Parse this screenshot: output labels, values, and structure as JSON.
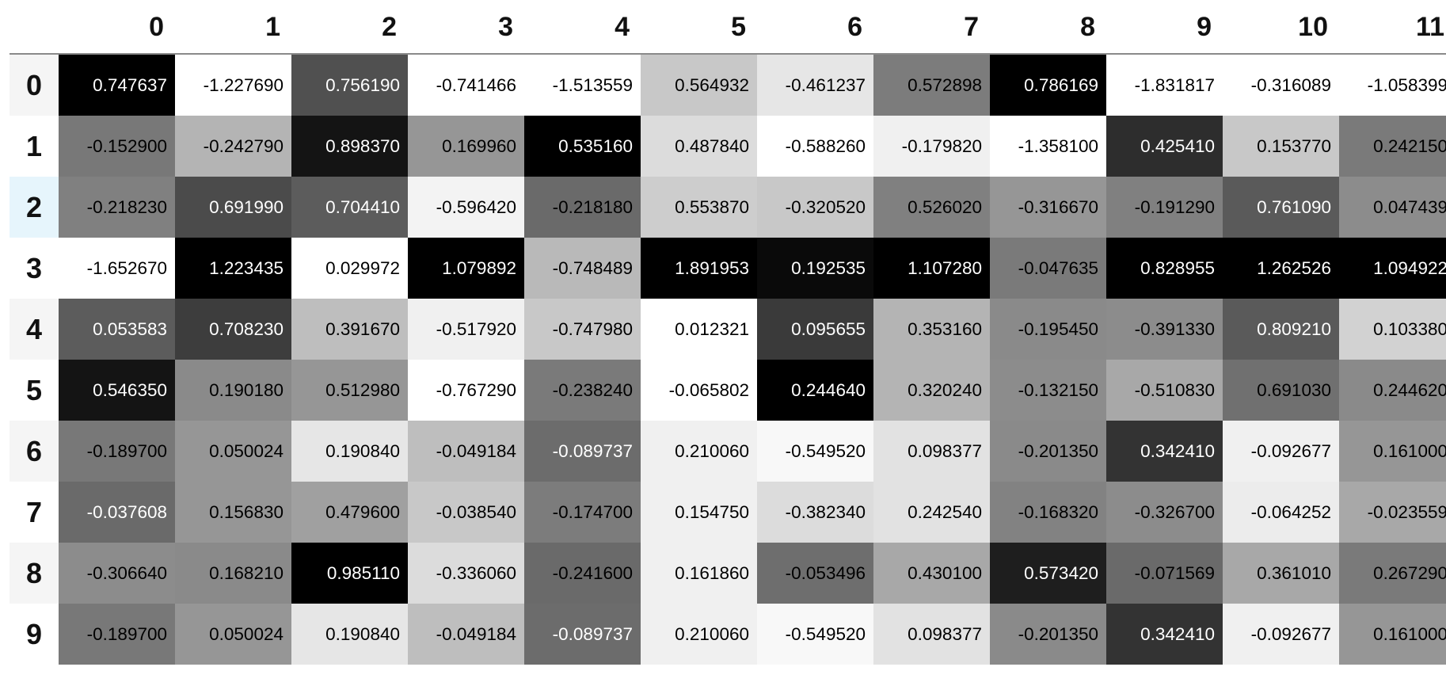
{
  "columns": [
    "0",
    "1",
    "2",
    "3",
    "4",
    "5",
    "6",
    "7",
    "8",
    "9",
    "10",
    "11"
  ],
  "selected_row": 2,
  "rows": [
    {
      "label": "0",
      "cells": [
        {
          "v": "0.747637",
          "bg": "#000000",
          "fg": "#ffffff"
        },
        {
          "v": "-1.227690",
          "bg": "#ffffff",
          "fg": "#000000"
        },
        {
          "v": "0.756190",
          "bg": "#505050",
          "fg": "#ffffff"
        },
        {
          "v": "-0.741466",
          "bg": "#ffffff",
          "fg": "#000000"
        },
        {
          "v": "-1.513559",
          "bg": "#ffffff",
          "fg": "#000000"
        },
        {
          "v": "0.564932",
          "bg": "#c8c8c8",
          "fg": "#000000"
        },
        {
          "v": "-0.461237",
          "bg": "#e6e6e6",
          "fg": "#000000"
        },
        {
          "v": "0.572898",
          "bg": "#7c7c7c",
          "fg": "#000000"
        },
        {
          "v": "0.786169",
          "bg": "#000000",
          "fg": "#ffffff"
        },
        {
          "v": "-1.831817",
          "bg": "#ffffff",
          "fg": "#000000"
        },
        {
          "v": "-0.316089",
          "bg": "#ffffff",
          "fg": "#000000"
        },
        {
          "v": "-1.058399",
          "bg": "#ffffff",
          "fg": "#000000"
        },
        {
          "v": "",
          "bg": "#ffffff",
          "fg": "#000000"
        }
      ]
    },
    {
      "label": "1",
      "cells": [
        {
          "v": "-0.152900",
          "bg": "#787878",
          "fg": "#000000"
        },
        {
          "v": "-0.242790",
          "bg": "#b4b4b4",
          "fg": "#000000"
        },
        {
          "v": "0.898370",
          "bg": "#141414",
          "fg": "#ffffff"
        },
        {
          "v": "0.169960",
          "bg": "#969696",
          "fg": "#000000"
        },
        {
          "v": "0.535160",
          "bg": "#000000",
          "fg": "#ffffff"
        },
        {
          "v": "0.487840",
          "bg": "#dcdcdc",
          "fg": "#000000"
        },
        {
          "v": "-0.588260",
          "bg": "#ffffff",
          "fg": "#000000"
        },
        {
          "v": "-0.179820",
          "bg": "#f0f0f0",
          "fg": "#000000"
        },
        {
          "v": "-1.358100",
          "bg": "#ffffff",
          "fg": "#000000"
        },
        {
          "v": "0.425410",
          "bg": "#2d2d2d",
          "fg": "#ffffff"
        },
        {
          "v": "0.153770",
          "bg": "#c8c8c8",
          "fg": "#000000"
        },
        {
          "v": "0.242150",
          "bg": "#7a7a7a",
          "fg": "#000000"
        },
        {
          "v": "",
          "bg": "#3c3c3c",
          "fg": "#ffffff"
        }
      ]
    },
    {
      "label": "2",
      "cells": [
        {
          "v": "-0.218230",
          "bg": "#808080",
          "fg": "#000000"
        },
        {
          "v": "0.691990",
          "bg": "#4b4b4b",
          "fg": "#ffffff"
        },
        {
          "v": "0.704410",
          "bg": "#5c5c5c",
          "fg": "#ffffff"
        },
        {
          "v": "-0.596420",
          "bg": "#f3f3f3",
          "fg": "#000000"
        },
        {
          "v": "-0.218180",
          "bg": "#6a6a6a",
          "fg": "#000000"
        },
        {
          "v": "0.553870",
          "bg": "#cdcdcd",
          "fg": "#000000"
        },
        {
          "v": "-0.320520",
          "bg": "#c8c8c8",
          "fg": "#000000"
        },
        {
          "v": "0.526020",
          "bg": "#808080",
          "fg": "#000000"
        },
        {
          "v": "-0.316670",
          "bg": "#969696",
          "fg": "#000000"
        },
        {
          "v": "-0.191290",
          "bg": "#808080",
          "fg": "#000000"
        },
        {
          "v": "0.761090",
          "bg": "#5a5a5a",
          "fg": "#ffffff"
        },
        {
          "v": "0.047439",
          "bg": "#8c8c8c",
          "fg": "#000000"
        },
        {
          "v": "",
          "bg": "#7a7a7a",
          "fg": "#000000"
        }
      ]
    },
    {
      "label": "3",
      "cells": [
        {
          "v": "-1.652670",
          "bg": "#ffffff",
          "fg": "#000000"
        },
        {
          "v": "1.223435",
          "bg": "#000000",
          "fg": "#ffffff"
        },
        {
          "v": "0.029972",
          "bg": "#ffffff",
          "fg": "#000000"
        },
        {
          "v": "1.079892",
          "bg": "#000000",
          "fg": "#ffffff"
        },
        {
          "v": "-0.748489",
          "bg": "#b9b9b9",
          "fg": "#000000"
        },
        {
          "v": "1.891953",
          "bg": "#000000",
          "fg": "#ffffff"
        },
        {
          "v": "0.192535",
          "bg": "#0a0a0a",
          "fg": "#ffffff"
        },
        {
          "v": "1.107280",
          "bg": "#000000",
          "fg": "#ffffff"
        },
        {
          "v": "-0.047635",
          "bg": "#7a7a7a",
          "fg": "#000000"
        },
        {
          "v": "0.828955",
          "bg": "#000000",
          "fg": "#ffffff"
        },
        {
          "v": "1.262526",
          "bg": "#000000",
          "fg": "#ffffff"
        },
        {
          "v": "1.094922",
          "bg": "#000000",
          "fg": "#ffffff"
        },
        {
          "v": "",
          "bg": "#000000",
          "fg": "#ffffff"
        }
      ]
    },
    {
      "label": "4",
      "cells": [
        {
          "v": "0.053583",
          "bg": "#5c5c5c",
          "fg": "#ffffff"
        },
        {
          "v": "0.708230",
          "bg": "#3d3d3d",
          "fg": "#ffffff"
        },
        {
          "v": "0.391670",
          "bg": "#bebebe",
          "fg": "#000000"
        },
        {
          "v": "-0.517920",
          "bg": "#f0f0f0",
          "fg": "#000000"
        },
        {
          "v": "-0.747980",
          "bg": "#c8c8c8",
          "fg": "#000000"
        },
        {
          "v": "0.012321",
          "bg": "#ffffff",
          "fg": "#000000"
        },
        {
          "v": "0.095655",
          "bg": "#3a3a3a",
          "fg": "#ffffff"
        },
        {
          "v": "0.353160",
          "bg": "#b4b4b4",
          "fg": "#000000"
        },
        {
          "v": "-0.195450",
          "bg": "#8a8a8a",
          "fg": "#000000"
        },
        {
          "v": "-0.391330",
          "bg": "#8c8c8c",
          "fg": "#000000"
        },
        {
          "v": "0.809210",
          "bg": "#5a5a5a",
          "fg": "#ffffff"
        },
        {
          "v": "0.103380",
          "bg": "#d2d2d2",
          "fg": "#000000"
        },
        {
          "v": "",
          "bg": "#3c3c3c",
          "fg": "#ffffff"
        }
      ]
    },
    {
      "label": "5",
      "cells": [
        {
          "v": "0.546350",
          "bg": "#141414",
          "fg": "#ffffff"
        },
        {
          "v": "0.190180",
          "bg": "#8a8a8a",
          "fg": "#000000"
        },
        {
          "v": "0.512980",
          "bg": "#969696",
          "fg": "#000000"
        },
        {
          "v": "-0.767290",
          "bg": "#ffffff",
          "fg": "#000000"
        },
        {
          "v": "-0.238240",
          "bg": "#7a7a7a",
          "fg": "#000000"
        },
        {
          "v": "-0.065802",
          "bg": "#ffffff",
          "fg": "#000000"
        },
        {
          "v": "0.244640",
          "bg": "#000000",
          "fg": "#ffffff"
        },
        {
          "v": "0.320240",
          "bg": "#b4b4b4",
          "fg": "#000000"
        },
        {
          "v": "-0.132150",
          "bg": "#8c8c8c",
          "fg": "#000000"
        },
        {
          "v": "-0.510830",
          "bg": "#a8a8a8",
          "fg": "#000000"
        },
        {
          "v": "0.691030",
          "bg": "#707070",
          "fg": "#000000"
        },
        {
          "v": "0.244620",
          "bg": "#8a8a8a",
          "fg": "#000000"
        },
        {
          "v": "",
          "bg": "#3c3c3c",
          "fg": "#ffffff"
        }
      ]
    },
    {
      "label": "6",
      "cells": [
        {
          "v": "-0.189700",
          "bg": "#787878",
          "fg": "#000000"
        },
        {
          "v": "0.050024",
          "bg": "#969696",
          "fg": "#000000"
        },
        {
          "v": "0.190840",
          "bg": "#e6e6e6",
          "fg": "#000000"
        },
        {
          "v": "-0.049184",
          "bg": "#bebebe",
          "fg": "#000000"
        },
        {
          "v": "-0.089737",
          "bg": "#6c6c6c",
          "fg": "#ffffff"
        },
        {
          "v": "0.210060",
          "bg": "#f0f0f0",
          "fg": "#000000"
        },
        {
          "v": "-0.549520",
          "bg": "#f8f8f8",
          "fg": "#000000"
        },
        {
          "v": "0.098377",
          "bg": "#e2e2e2",
          "fg": "#000000"
        },
        {
          "v": "-0.201350",
          "bg": "#8a8a8a",
          "fg": "#000000"
        },
        {
          "v": "0.342410",
          "bg": "#333333",
          "fg": "#ffffff"
        },
        {
          "v": "-0.092677",
          "bg": "#f0f0f0",
          "fg": "#000000"
        },
        {
          "v": "0.161000",
          "bg": "#969696",
          "fg": "#000000"
        },
        {
          "v": "",
          "bg": "#7a7a7a",
          "fg": "#000000"
        }
      ]
    },
    {
      "label": "7",
      "cells": [
        {
          "v": "-0.037608",
          "bg": "#6a6a6a",
          "fg": "#ffffff"
        },
        {
          "v": "0.156830",
          "bg": "#969696",
          "fg": "#000000"
        },
        {
          "v": "0.479600",
          "bg": "#a0a0a0",
          "fg": "#000000"
        },
        {
          "v": "-0.038540",
          "bg": "#c8c8c8",
          "fg": "#000000"
        },
        {
          "v": "-0.174700",
          "bg": "#7c7c7c",
          "fg": "#000000"
        },
        {
          "v": "0.154750",
          "bg": "#f0f0f0",
          "fg": "#000000"
        },
        {
          "v": "-0.382340",
          "bg": "#dcdcdc",
          "fg": "#000000"
        },
        {
          "v": "0.242540",
          "bg": "#e2e2e2",
          "fg": "#000000"
        },
        {
          "v": "-0.168320",
          "bg": "#828282",
          "fg": "#000000"
        },
        {
          "v": "-0.326700",
          "bg": "#8c8c8c",
          "fg": "#000000"
        },
        {
          "v": "-0.064252",
          "bg": "#ececec",
          "fg": "#000000"
        },
        {
          "v": "-0.023559",
          "bg": "#a8a8a8",
          "fg": "#000000"
        },
        {
          "v": "",
          "bg": "#7a7a7a",
          "fg": "#000000"
        }
      ]
    },
    {
      "label": "8",
      "cells": [
        {
          "v": "-0.306640",
          "bg": "#8c8c8c",
          "fg": "#000000"
        },
        {
          "v": "0.168210",
          "bg": "#8a8a8a",
          "fg": "#000000"
        },
        {
          "v": "0.985110",
          "bg": "#000000",
          "fg": "#ffffff"
        },
        {
          "v": "-0.336060",
          "bg": "#dcdcdc",
          "fg": "#000000"
        },
        {
          "v": "-0.241600",
          "bg": "#6a6a6a",
          "fg": "#000000"
        },
        {
          "v": "0.161860",
          "bg": "#f0f0f0",
          "fg": "#000000"
        },
        {
          "v": "-0.053496",
          "bg": "#6e6e6e",
          "fg": "#000000"
        },
        {
          "v": "0.430100",
          "bg": "#a8a8a8",
          "fg": "#000000"
        },
        {
          "v": "0.573420",
          "bg": "#1e1e1e",
          "fg": "#ffffff"
        },
        {
          "v": "-0.071569",
          "bg": "#6a6a6a",
          "fg": "#000000"
        },
        {
          "v": "0.361010",
          "bg": "#a8a8a8",
          "fg": "#000000"
        },
        {
          "v": "0.267290",
          "bg": "#7a7a7a",
          "fg": "#000000"
        },
        {
          "v": "",
          "bg": "#7a7a7a",
          "fg": "#000000"
        }
      ]
    },
    {
      "label": "9",
      "cells": [
        {
          "v": "-0.189700",
          "bg": "#787878",
          "fg": "#000000"
        },
        {
          "v": "0.050024",
          "bg": "#969696",
          "fg": "#000000"
        },
        {
          "v": "0.190840",
          "bg": "#e6e6e6",
          "fg": "#000000"
        },
        {
          "v": "-0.049184",
          "bg": "#bebebe",
          "fg": "#000000"
        },
        {
          "v": "-0.089737",
          "bg": "#6c6c6c",
          "fg": "#ffffff"
        },
        {
          "v": "0.210060",
          "bg": "#f0f0f0",
          "fg": "#000000"
        },
        {
          "v": "-0.549520",
          "bg": "#f8f8f8",
          "fg": "#000000"
        },
        {
          "v": "0.098377",
          "bg": "#e2e2e2",
          "fg": "#000000"
        },
        {
          "v": "-0.201350",
          "bg": "#8a8a8a",
          "fg": "#000000"
        },
        {
          "v": "0.342410",
          "bg": "#333333",
          "fg": "#ffffff"
        },
        {
          "v": "-0.092677",
          "bg": "#f0f0f0",
          "fg": "#000000"
        },
        {
          "v": "0.161000",
          "bg": "#969696",
          "fg": "#000000"
        },
        {
          "v": "",
          "bg": "#7a7a7a",
          "fg": "#000000"
        }
      ]
    }
  ]
}
